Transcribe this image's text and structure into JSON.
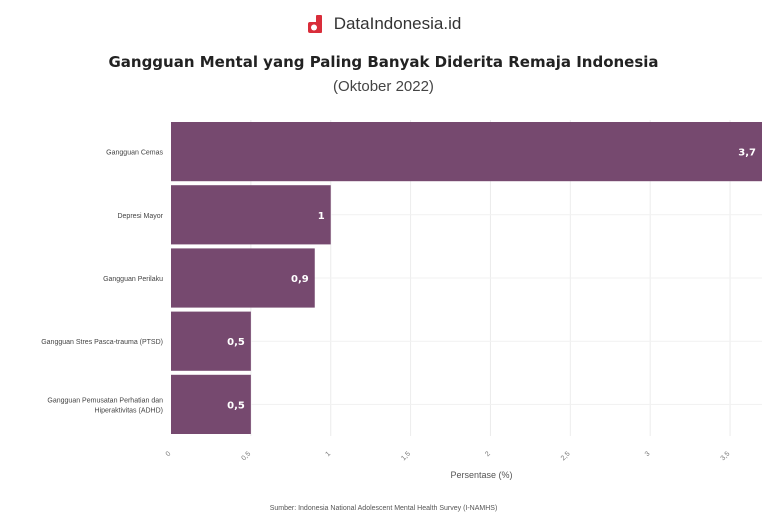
{
  "brand": {
    "name": "DataIndonesia.id",
    "logo_icon": "dataindonesia-logo-icon",
    "logo_color": "#d92d3a"
  },
  "chart_data": {
    "type": "bar",
    "orientation": "horizontal",
    "title": "Gangguan Mental yang Paling Banyak Diderita Remaja Indonesia",
    "subtitle": "(Oktober 2022)",
    "categories": [
      [
        "Gangguan Cemas"
      ],
      [
        "Depresi Mayor"
      ],
      [
        "Gangguan Perilaku"
      ],
      [
        "Gangguan Stres Pasca-trauma (PTSD)"
      ],
      [
        "Gangguan Pemusatan Perhatian dan",
        "Hiperaktivitas (ADHD)"
      ]
    ],
    "values": [
      3.7,
      1,
      0.9,
      0.5,
      0.5
    ],
    "value_labels": [
      "3,7",
      "1",
      "0,9",
      "0,5",
      "0,5"
    ],
    "xlabel": "Persentase (%)",
    "xlim": [
      0,
      3.7
    ],
    "xticks": [
      0,
      0.5,
      1,
      1.5,
      2,
      2.5,
      3,
      3.5
    ],
    "xtick_labels": [
      "0",
      "0,5",
      "1",
      "1,5",
      "2",
      "2,5",
      "3",
      "3,5"
    ],
    "bar_color": "#76496f",
    "grid": true
  },
  "source": "Sumber: Indonesia National Adolescent Mental Health Survey (I-NAMHS)"
}
